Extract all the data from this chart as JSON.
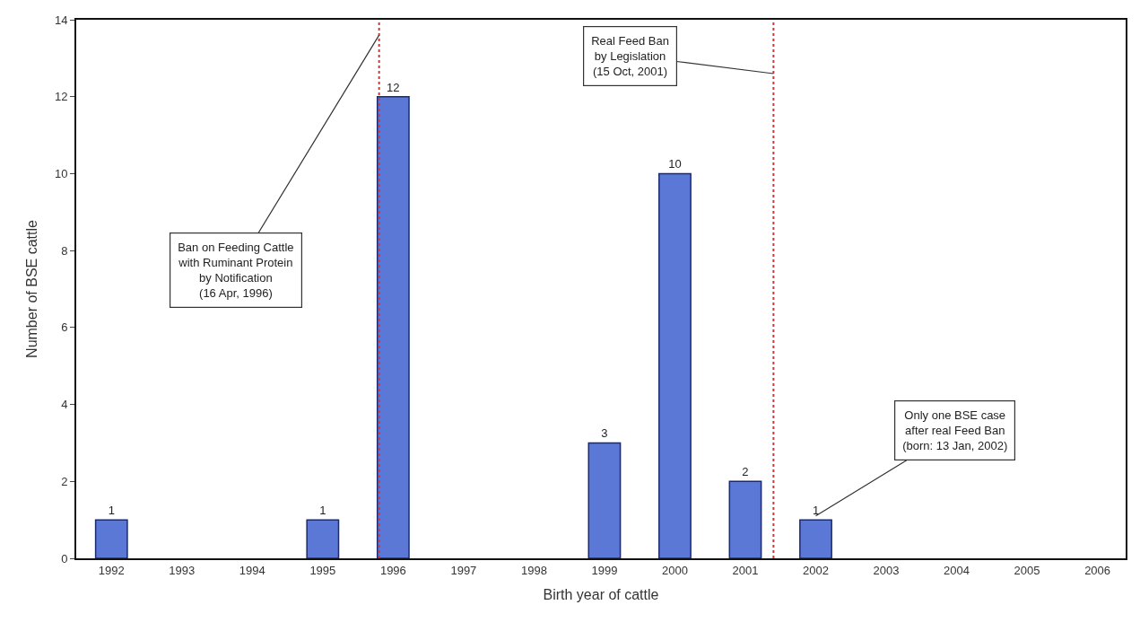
{
  "chart_data": {
    "type": "bar",
    "xlabel": "Birth year of cattle",
    "ylabel": "Number of BSE cattle",
    "x": [
      1992,
      1993,
      1994,
      1995,
      1996,
      1997,
      1998,
      1999,
      2000,
      2001,
      2002,
      2003,
      2004,
      2005,
      2006
    ],
    "values": [
      1,
      0,
      0,
      1,
      12,
      0,
      0,
      3,
      10,
      2,
      1,
      0,
      0,
      0,
      0
    ],
    "value_labels": [
      "1",
      null,
      null,
      "1",
      "12",
      null,
      null,
      "3",
      "10",
      "2",
      "1",
      null,
      null,
      null,
      null
    ],
    "color": "#5b78d6",
    "xlim": [
      1991.5,
      2006.4
    ],
    "xticks": [
      1992,
      1993,
      1994,
      1995,
      1996,
      1997,
      1998,
      1999,
      2000,
      2001,
      2002,
      2003,
      2004,
      2005,
      2006
    ],
    "ylim": [
      0,
      14
    ],
    "yticks": [
      0,
      2,
      4,
      6,
      8,
      10,
      12,
      14
    ],
    "ref_lines": [
      {
        "axis": "x",
        "value": 1995.8,
        "color": "#e03030",
        "line_style": "dotted"
      },
      {
        "axis": "x",
        "value": 2001.4,
        "color": "#e03030",
        "line_style": "dotted"
      }
    ],
    "annotations": [
      {
        "text": "Ban on Feeding Cattle\nwith Ruminant Protein\nby Notification\n(16 Apr, 1996)",
        "x": 1995.8,
        "y": 13.6
      },
      {
        "text": "Real Feed Ban\nby Legislation\n(15 Oct, 2001)",
        "x": 2001.4,
        "y": 12.6
      },
      {
        "text": "Only one BSE case\nafter real Feed Ban\n(born: 13 Jan, 2002)",
        "x": 2002,
        "y": 1.1
      }
    ]
  }
}
